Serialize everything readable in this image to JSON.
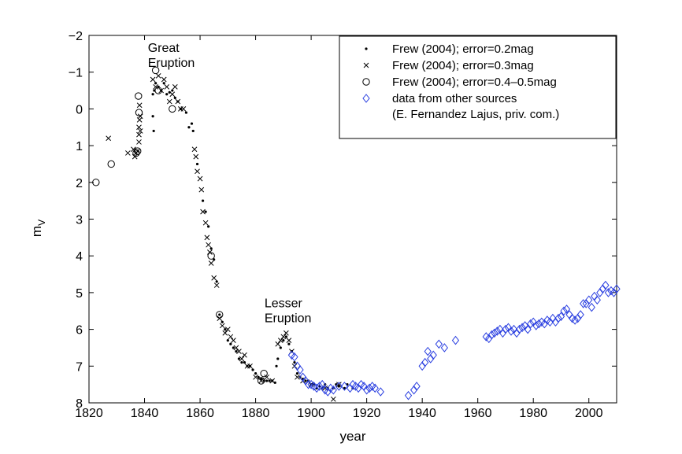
{
  "chart_data": {
    "type": "scatter",
    "title": "",
    "xlabel": "year",
    "ylabel": "m",
    "ylabel_subscript": "V",
    "xlim": [
      1820,
      2010
    ],
    "ylim": [
      -2,
      8
    ],
    "y_inverted": true,
    "x_ticks": [
      1820,
      1840,
      1860,
      1880,
      1900,
      1920,
      1940,
      1960,
      1980,
      2000
    ],
    "y_ticks": [
      -2,
      -1,
      0,
      1,
      2,
      3,
      4,
      5,
      6,
      7,
      8
    ],
    "grid": false,
    "legend_position": "top-right",
    "annotations": [
      {
        "lines": [
          "Great",
          "Eruption"
        ],
        "x": 1848,
        "y": -1.55
      },
      {
        "lines": [
          "Lesser",
          "Eruption"
        ],
        "x": 1890,
        "y": 5.4
      }
    ],
    "series": [
      {
        "name": "Frew (2004); error=0.2mag",
        "marker": "dot",
        "color": "#000000",
        "points": [
          [
            1843,
            -0.4
          ],
          [
            1843.5,
            -0.5
          ],
          [
            1844,
            -0.7
          ],
          [
            1845,
            -0.6
          ],
          [
            1846,
            -0.5
          ],
          [
            1847,
            -0.7
          ],
          [
            1848,
            -0.4
          ],
          [
            1849,
            -0.45
          ],
          [
            1850,
            -0.5
          ],
          [
            1851,
            -0.3
          ],
          [
            1843,
            0.2
          ],
          [
            1843.3,
            0.6
          ],
          [
            1852,
            -0.2
          ],
          [
            1853,
            0
          ],
          [
            1855,
            0.1
          ],
          [
            1856,
            0.5
          ],
          [
            1857,
            0.4
          ],
          [
            1857.5,
            0.6
          ],
          [
            1859,
            1.5
          ],
          [
            1861,
            2.5
          ],
          [
            1862,
            2.8
          ],
          [
            1863,
            3.2
          ],
          [
            1864,
            3.8
          ],
          [
            1865,
            4.1
          ],
          [
            1866,
            4.7
          ],
          [
            1867,
            5.6
          ],
          [
            1868,
            5.8
          ],
          [
            1869,
            6.0
          ],
          [
            1870,
            6.3
          ],
          [
            1871,
            6.4
          ],
          [
            1872,
            6.5
          ],
          [
            1873,
            6.6
          ],
          [
            1874,
            6.8
          ],
          [
            1875,
            6.9
          ],
          [
            1876,
            6.9
          ],
          [
            1877,
            7.0
          ],
          [
            1878,
            7.0
          ],
          [
            1879,
            7.1
          ],
          [
            1880,
            7.2
          ],
          [
            1881,
            7.3
          ],
          [
            1882,
            7.35
          ],
          [
            1883,
            7.4
          ],
          [
            1884,
            7.4
          ],
          [
            1885,
            7.4
          ],
          [
            1886,
            7.4
          ],
          [
            1887,
            7.45
          ],
          [
            1887.5,
            7.0
          ],
          [
            1888,
            6.8
          ],
          [
            1889,
            6.5
          ],
          [
            1890,
            6.3
          ],
          [
            1891,
            6.2
          ],
          [
            1892,
            6.4
          ],
          [
            1893,
            6.6
          ],
          [
            1894,
            6.9
          ],
          [
            1895,
            7.2
          ],
          [
            1896,
            7.3
          ],
          [
            1897,
            7.35
          ],
          [
            1898,
            7.4
          ],
          [
            1899,
            7.4
          ],
          [
            1900,
            7.5
          ],
          [
            1901,
            7.5
          ],
          [
            1902,
            7.6
          ],
          [
            1903,
            7.55
          ],
          [
            1904,
            7.6
          ],
          [
            1905,
            7.5
          ],
          [
            1906,
            7.6
          ],
          [
            1908,
            7.6
          ],
          [
            1909,
            7.5
          ],
          [
            1910,
            7.55
          ],
          [
            1912,
            7.6
          ],
          [
            1913,
            7.5
          ],
          [
            1915,
            7.6
          ]
        ]
      },
      {
        "name": "Frew (2004); error=0.3mag",
        "marker": "x",
        "color": "#000000",
        "points": [
          [
            1827,
            0.8
          ],
          [
            1834,
            1.2
          ],
          [
            1836,
            1.1
          ],
          [
            1836.5,
            1.3
          ],
          [
            1837,
            1.2
          ],
          [
            1837.5,
            1.15
          ],
          [
            1838,
            0.5
          ],
          [
            1838,
            0.7
          ],
          [
            1838,
            0.9
          ],
          [
            1838.2,
            0.3
          ],
          [
            1838.2,
            -0.1
          ],
          [
            1838.5,
            0.2
          ],
          [
            1838.5,
            0.6
          ],
          [
            1843,
            -0.8
          ],
          [
            1844,
            -0.6
          ],
          [
            1845,
            -0.9
          ],
          [
            1846,
            -0.5
          ],
          [
            1847,
            -0.8
          ],
          [
            1848,
            -0.6
          ],
          [
            1849,
            -0.2
          ],
          [
            1850,
            -0.4
          ],
          [
            1851,
            -0.6
          ],
          [
            1852,
            -0.2
          ],
          [
            1853,
            0
          ],
          [
            1854,
            0
          ],
          [
            1858,
            1.1
          ],
          [
            1858.5,
            1.3
          ],
          [
            1859,
            1.7
          ],
          [
            1860,
            1.9
          ],
          [
            1860.5,
            2.2
          ],
          [
            1861,
            2.8
          ],
          [
            1862,
            3.1
          ],
          [
            1862.5,
            3.5
          ],
          [
            1863,
            3.7
          ],
          [
            1863.5,
            3.9
          ],
          [
            1864,
            4.2
          ],
          [
            1865,
            4.6
          ],
          [
            1866,
            4.8
          ],
          [
            1867,
            5.7
          ],
          [
            1868,
            5.9
          ],
          [
            1869,
            6.1
          ],
          [
            1870,
            6.0
          ],
          [
            1871,
            6.2
          ],
          [
            1872,
            6.3
          ],
          [
            1873,
            6.5
          ],
          [
            1874,
            6.6
          ],
          [
            1875,
            6.8
          ],
          [
            1876,
            6.7
          ],
          [
            1877,
            7.0
          ],
          [
            1878,
            7.0
          ],
          [
            1880,
            7.3
          ],
          [
            1882,
            7.4
          ],
          [
            1884,
            7.3
          ],
          [
            1886,
            7.4
          ],
          [
            1888,
            6.4
          ],
          [
            1889,
            6.3
          ],
          [
            1890,
            6.2
          ],
          [
            1891,
            6.1
          ],
          [
            1892,
            6.3
          ],
          [
            1893,
            6.6
          ],
          [
            1894,
            7.0
          ],
          [
            1895,
            7.3
          ],
          [
            1897,
            7.4
          ],
          [
            1900,
            7.5
          ],
          [
            1905,
            7.6
          ],
          [
            1910,
            7.5
          ],
          [
            1908,
            7.9
          ]
        ]
      },
      {
        "name": "Frew (2004); error=0.4–0.5mag",
        "marker": "circle",
        "color": "#000000",
        "points": [
          [
            1822.5,
            2.0
          ],
          [
            1828,
            1.5
          ],
          [
            1837,
            1.2
          ],
          [
            1837.5,
            1.15
          ],
          [
            1837.8,
            -0.35
          ],
          [
            1838,
            0.1
          ],
          [
            1844,
            -1.05
          ],
          [
            1845,
            -0.5
          ],
          [
            1850,
            0.0
          ],
          [
            1864,
            4.0
          ],
          [
            1867,
            5.6
          ],
          [
            1882,
            7.4
          ],
          [
            1883,
            7.2
          ]
        ]
      },
      {
        "name": "data from other sources",
        "name_line2": "(E. Fernandez Lajus, priv. com.)",
        "marker": "diamond",
        "color": "#2a3fe0",
        "points": [
          [
            1893,
            6.7
          ],
          [
            1894,
            6.75
          ],
          [
            1895,
            7.0
          ],
          [
            1896,
            7.1
          ],
          [
            1897,
            7.3
          ],
          [
            1898,
            7.4
          ],
          [
            1899,
            7.5
          ],
          [
            1900,
            7.5
          ],
          [
            1901,
            7.55
          ],
          [
            1902,
            7.6
          ],
          [
            1903,
            7.55
          ],
          [
            1904,
            7.5
          ],
          [
            1905,
            7.65
          ],
          [
            1906,
            7.7
          ],
          [
            1907,
            7.6
          ],
          [
            1908,
            7.65
          ],
          [
            1910,
            7.55
          ],
          [
            1912,
            7.55
          ],
          [
            1914,
            7.6
          ],
          [
            1915,
            7.5
          ],
          [
            1916,
            7.55
          ],
          [
            1917,
            7.6
          ],
          [
            1918,
            7.5
          ],
          [
            1919,
            7.55
          ],
          [
            1920,
            7.65
          ],
          [
            1921,
            7.6
          ],
          [
            1922,
            7.55
          ],
          [
            1923,
            7.6
          ],
          [
            1925,
            7.7
          ],
          [
            1935,
            7.8
          ],
          [
            1937,
            7.65
          ],
          [
            1938,
            7.55
          ],
          [
            1940,
            7.0
          ],
          [
            1941,
            6.9
          ],
          [
            1942,
            6.6
          ],
          [
            1943,
            6.8
          ],
          [
            1944,
            6.7
          ],
          [
            1946,
            6.4
          ],
          [
            1948,
            6.5
          ],
          [
            1952,
            6.3
          ],
          [
            1963,
            6.2
          ],
          [
            1964,
            6.25
          ],
          [
            1965,
            6.15
          ],
          [
            1966,
            6.1
          ],
          [
            1967,
            6.05
          ],
          [
            1968,
            6.0
          ],
          [
            1969,
            6.1
          ],
          [
            1970,
            6.0
          ],
          [
            1971,
            5.95
          ],
          [
            1972,
            6.05
          ],
          [
            1973,
            6.0
          ],
          [
            1974,
            6.1
          ],
          [
            1975,
            6.0
          ],
          [
            1976,
            5.95
          ],
          [
            1977,
            5.9
          ],
          [
            1978,
            6.0
          ],
          [
            1979,
            5.85
          ],
          [
            1980,
            5.8
          ],
          [
            1981,
            5.9
          ],
          [
            1982,
            5.85
          ],
          [
            1983,
            5.8
          ],
          [
            1984,
            5.85
          ],
          [
            1985,
            5.75
          ],
          [
            1986,
            5.8
          ],
          [
            1987,
            5.7
          ],
          [
            1988,
            5.8
          ],
          [
            1989,
            5.7
          ],
          [
            1990,
            5.65
          ],
          [
            1991,
            5.5
          ],
          [
            1992,
            5.45
          ],
          [
            1993,
            5.6
          ],
          [
            1994,
            5.7
          ],
          [
            1995,
            5.75
          ],
          [
            1996,
            5.7
          ],
          [
            1997,
            5.6
          ],
          [
            1998,
            5.3
          ],
          [
            1999,
            5.3
          ],
          [
            2000,
            5.2
          ],
          [
            2001,
            5.4
          ],
          [
            2002,
            5.1
          ],
          [
            2003,
            5.2
          ],
          [
            2004,
            5.0
          ],
          [
            2005,
            4.9
          ],
          [
            2006,
            4.8
          ],
          [
            2007,
            5.0
          ],
          [
            2008,
            4.95
          ],
          [
            2009,
            5.0
          ],
          [
            2010,
            4.9
          ]
        ]
      }
    ]
  }
}
